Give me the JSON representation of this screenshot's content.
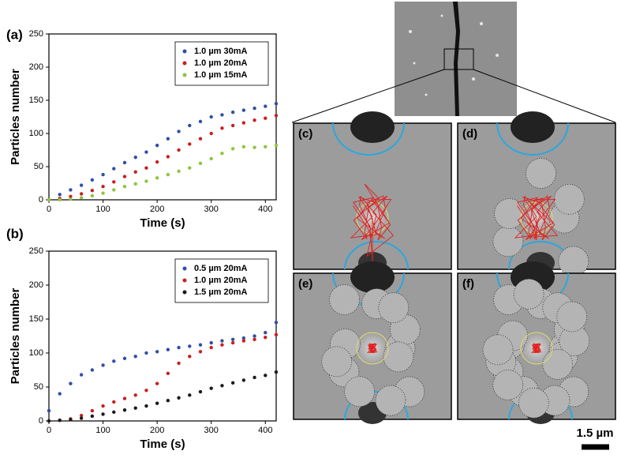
{
  "chart_data": [
    {
      "type": "scatter",
      "panel_label": "(a)",
      "x_label": "Time (s)",
      "y_label": "Particles number",
      "x": [
        0,
        20,
        40,
        60,
        80,
        100,
        120,
        140,
        160,
        180,
        200,
        220,
        240,
        260,
        280,
        300,
        320,
        340,
        360,
        380,
        400,
        420
      ],
      "series": [
        {
          "name": "1.0 µm 30mA",
          "color": "#2f4fa8",
          "values": [
            0,
            8,
            15,
            22,
            30,
            38,
            47,
            56,
            64,
            72,
            82,
            92,
            103,
            112,
            118,
            125,
            128,
            132,
            135,
            138,
            141,
            145
          ]
        },
        {
          "name": "1.0 µm 20mA",
          "color": "#c8201e",
          "values": [
            0,
            2,
            5,
            9,
            14,
            20,
            27,
            35,
            42,
            48,
            57,
            65,
            75,
            84,
            92,
            100,
            108,
            112,
            116,
            120,
            123,
            127
          ]
        },
        {
          "name": "1.0 µm 15mA",
          "color": "#8cc63e",
          "values": [
            0,
            0,
            1,
            3,
            6,
            10,
            15,
            20,
            24,
            28,
            33,
            38,
            43,
            48,
            55,
            62,
            70,
            77,
            80,
            79,
            80,
            82
          ]
        }
      ],
      "xlim": [
        0,
        420
      ],
      "xticks": [
        0,
        100,
        200,
        300,
        400
      ],
      "ylim": [
        0,
        250
      ],
      "yticks": [
        0,
        50,
        100,
        150,
        200,
        250
      ],
      "legend": "upper right"
    },
    {
      "type": "scatter",
      "panel_label": "(b)",
      "x_label": "Time (s)",
      "y_label": "Particles number",
      "x": [
        0,
        20,
        40,
        60,
        80,
        100,
        120,
        140,
        160,
        180,
        200,
        220,
        240,
        260,
        280,
        300,
        320,
        340,
        360,
        380,
        400,
        420
      ],
      "series": [
        {
          "name": "0.5 µm 20mA",
          "color": "#2f4fa8",
          "values": [
            15,
            40,
            55,
            68,
            75,
            82,
            88,
            92,
            95,
            100,
            102,
            105,
            108,
            110,
            112,
            115,
            118,
            120,
            122,
            125,
            130,
            145
          ]
        },
        {
          "name": "1.0 µm 20mA",
          "color": "#c8201e",
          "values": [
            0,
            1,
            3,
            8,
            15,
            22,
            28,
            33,
            38,
            45,
            55,
            70,
            85,
            95,
            102,
            108,
            112,
            115,
            118,
            120,
            123,
            127
          ]
        },
        {
          "name": "1.5 µm 20mA",
          "color": "#1a1a1a",
          "values": [
            0,
            1,
            2,
            4,
            7,
            10,
            13,
            16,
            19,
            22,
            26,
            30,
            34,
            38,
            43,
            48,
            52,
            56,
            60,
            64,
            67,
            72
          ]
        }
      ],
      "xlim": [
        0,
        420
      ],
      "xticks": [
        0,
        100,
        200,
        300,
        400
      ],
      "ylim": [
        0,
        250
      ],
      "yticks": [
        0,
        50,
        100,
        150,
        200,
        250
      ],
      "legend": "upper right"
    }
  ],
  "panels": {
    "labels": [
      "(c)",
      "(d)",
      "(e)",
      "(f)"
    ],
    "scale_bar": "1.5 µm"
  }
}
